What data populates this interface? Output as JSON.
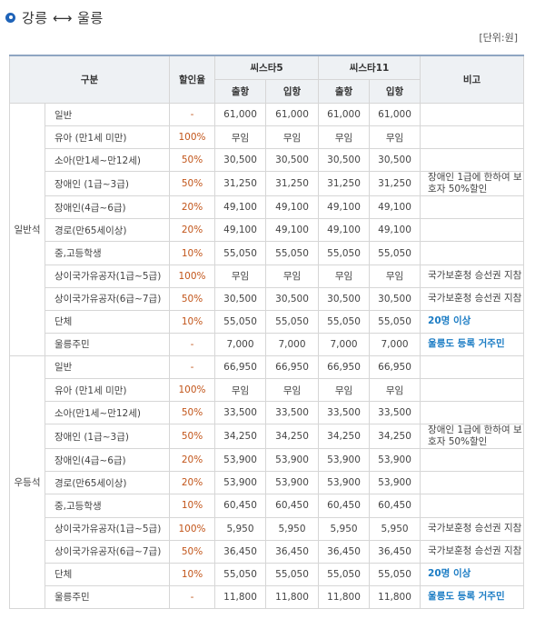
{
  "title": "강릉 ⟷ 울릉",
  "unit": "[단위:원]",
  "headers": {
    "category": "구분",
    "discount": "할인율",
    "ship1": "씨스타5",
    "ship2": "씨스타11",
    "note": "비고",
    "out": "출항",
    "in": "입항"
  },
  "sections": [
    {
      "name": "일반석",
      "rows": [
        {
          "item": "일반",
          "rate": "-",
          "v": [
            "61,000",
            "61,000",
            "61,000",
            "61,000"
          ],
          "note": "",
          "blue": false
        },
        {
          "item": "유아 (만1세 미만)",
          "rate": "100%",
          "v": [
            "무임",
            "무임",
            "무임",
            "무임"
          ],
          "note": "",
          "blue": false
        },
        {
          "item": "소아(만1세~만12세)",
          "rate": "50%",
          "v": [
            "30,500",
            "30,500",
            "30,500",
            "30,500"
          ],
          "note": "",
          "blue": false
        },
        {
          "item": "장애인 (1급~3급)",
          "rate": "50%",
          "v": [
            "31,250",
            "31,250",
            "31,250",
            "31,250"
          ],
          "note": "장애인 1급에 한하여 보호자 50%할인",
          "blue": false
        },
        {
          "item": "장애인(4급~6급)",
          "rate": "20%",
          "v": [
            "49,100",
            "49,100",
            "49,100",
            "49,100"
          ],
          "note": "",
          "blue": false
        },
        {
          "item": "경로(만65세이상)",
          "rate": "20%",
          "v": [
            "49,100",
            "49,100",
            "49,100",
            "49,100"
          ],
          "note": "",
          "blue": false
        },
        {
          "item": "중,고등학생",
          "rate": "10%",
          "v": [
            "55,050",
            "55,050",
            "55,050",
            "55,050"
          ],
          "note": "",
          "blue": false
        },
        {
          "item": "상이국가유공자(1급~5급)",
          "rate": "100%",
          "v": [
            "무임",
            "무임",
            "무임",
            "무임"
          ],
          "note": "국가보훈청 승선권 지참",
          "blue": false
        },
        {
          "item": "상이국가유공자(6급~7급)",
          "rate": "50%",
          "v": [
            "30,500",
            "30,500",
            "30,500",
            "30,500"
          ],
          "note": "국가보훈청 승선권 지참",
          "blue": false
        },
        {
          "item": "단체",
          "rate": "10%",
          "v": [
            "55,050",
            "55,050",
            "55,050",
            "55,050"
          ],
          "note": "20명 이상",
          "blue": true
        },
        {
          "item": "울릉주민",
          "rate": "-",
          "v": [
            "7,000",
            "7,000",
            "7,000",
            "7,000"
          ],
          "note": "울릉도 등록 거주민",
          "blue": true
        }
      ]
    },
    {
      "name": "우등석",
      "rows": [
        {
          "item": "일반",
          "rate": "-",
          "v": [
            "66,950",
            "66,950",
            "66,950",
            "66,950"
          ],
          "note": "",
          "blue": false
        },
        {
          "item": "유아 (만1세 미만)",
          "rate": "100%",
          "v": [
            "무임",
            "무임",
            "무임",
            "무임"
          ],
          "note": "",
          "blue": false
        },
        {
          "item": "소아(만1세~만12세)",
          "rate": "50%",
          "v": [
            "33,500",
            "33,500",
            "33,500",
            "33,500"
          ],
          "note": "",
          "blue": false
        },
        {
          "item": "장애인 (1급~3급)",
          "rate": "50%",
          "v": [
            "34,250",
            "34,250",
            "34,250",
            "34,250"
          ],
          "note": "장애인 1급에 한하여 보호자 50%할인",
          "blue": false
        },
        {
          "item": "장애인(4급~6급)",
          "rate": "20%",
          "v": [
            "53,900",
            "53,900",
            "53,900",
            "53,900"
          ],
          "note": "",
          "blue": false
        },
        {
          "item": "경로(만65세이상)",
          "rate": "20%",
          "v": [
            "53,900",
            "53,900",
            "53,900",
            "53,900"
          ],
          "note": "",
          "blue": false
        },
        {
          "item": "중,고등학생",
          "rate": "10%",
          "v": [
            "60,450",
            "60,450",
            "60,450",
            "60,450"
          ],
          "note": "",
          "blue": false
        },
        {
          "item": "상이국가유공자(1급~5급)",
          "rate": "100%",
          "v": [
            "5,950",
            "5,950",
            "5,950",
            "5,950"
          ],
          "note": "국가보훈청 승선권 지참",
          "blue": false
        },
        {
          "item": "상이국가유공자(6급~7급)",
          "rate": "50%",
          "v": [
            "36,450",
            "36,450",
            "36,450",
            "36,450"
          ],
          "note": "국가보훈청 승선권 지참",
          "blue": false
        },
        {
          "item": "단체",
          "rate": "10%",
          "v": [
            "55,050",
            "55,050",
            "55,050",
            "55,050"
          ],
          "note": "20명 이상",
          "blue": true
        },
        {
          "item": "울릉주민",
          "rate": "-",
          "v": [
            "11,800",
            "11,800",
            "11,800",
            "11,800"
          ],
          "note": "울릉도 등록 거주민",
          "blue": true
        }
      ]
    }
  ]
}
